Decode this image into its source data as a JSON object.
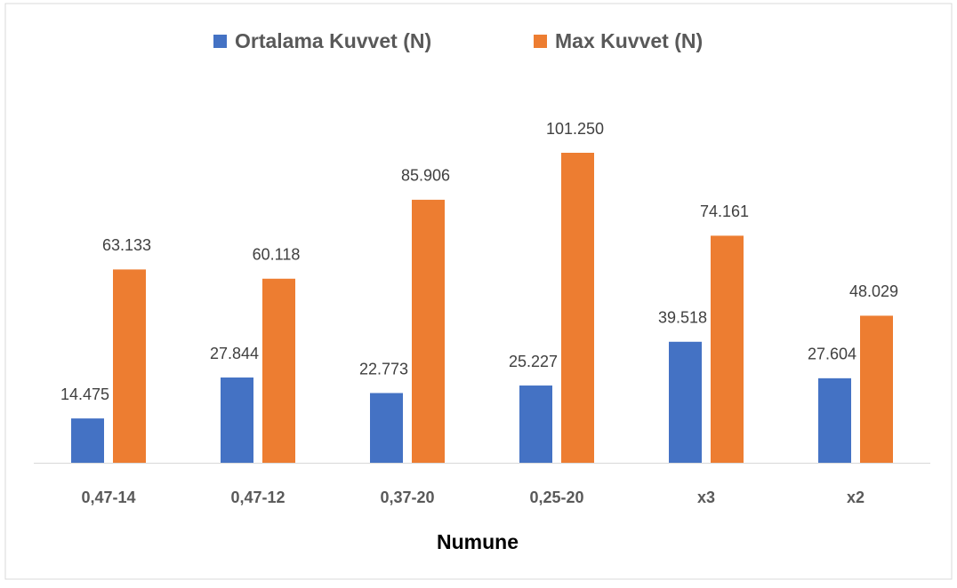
{
  "chart_data": {
    "type": "bar",
    "x_label": "Numune",
    "categories": [
      "0,47-14",
      "0,47-12",
      "0,37-20",
      "0,25-20",
      "x3",
      "x2"
    ],
    "series": [
      {
        "name": "Ortalama Kuvvet (N)",
        "color": "#4472c4",
        "values": [
          14.475,
          27.844,
          22.773,
          25.227,
          39.518,
          27.604
        ],
        "value_labels": [
          "14.475",
          "27.844",
          "22.773",
          "25.227",
          "39.518",
          "27.604"
        ]
      },
      {
        "name": "Max Kuvvet (N)",
        "color": "#ed7d31",
        "values": [
          63.133,
          60.118,
          85.906,
          101.25,
          74.161,
          48.029
        ],
        "value_labels": [
          "63.133",
          "60.118",
          "85.906",
          "101.250",
          "74.161",
          "48.029"
        ]
      }
    ],
    "legend": "top"
  }
}
